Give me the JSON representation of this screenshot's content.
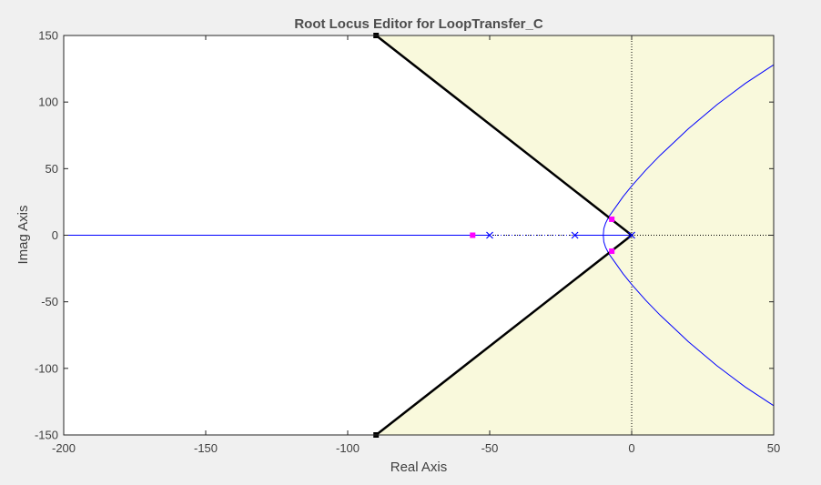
{
  "window": {
    "title": "Root Locus Editor for LoopTransfer_C"
  },
  "chart_data": {
    "type": "line",
    "title": "Root Locus Editor for LoopTransfer_C",
    "xlabel": "Real Axis",
    "ylabel": "Imag Axis",
    "xlim": [
      -200,
      50
    ],
    "ylim": [
      -150,
      150
    ],
    "xticks": [
      -200,
      -150,
      -100,
      -50,
      0,
      50
    ],
    "yticks": [
      -150,
      -100,
      -50,
      0,
      50,
      100,
      150
    ],
    "xtick_labels": [
      "-200",
      "-150",
      "-100",
      "-50",
      "0",
      "50"
    ],
    "ytick_labels": [
      "-150",
      "-100",
      "-50",
      "0",
      "50",
      "100",
      "150"
    ],
    "grid": false,
    "colors": {
      "locus": "#0000ff",
      "constraint_region": "#f9f9dc",
      "constraint_edge": "#000000",
      "closed_loop_pole": "#ff00ff",
      "open_loop_pole": "#0000ff",
      "axis_zero_line": "#000000",
      "plot_background": "#ffffff",
      "figure_background": "#f0f0f0"
    },
    "open_loop_poles": [
      {
        "re": 0,
        "im": 0
      },
      {
        "re": -20,
        "im": 0
      },
      {
        "re": -50,
        "im": 0
      }
    ],
    "closed_loop_poles": [
      {
        "re": -7,
        "im": 12
      },
      {
        "re": -7,
        "im": -12
      },
      {
        "re": -56,
        "im": 0
      }
    ],
    "locus_branches": [
      {
        "name": "upper",
        "re": [
          -10,
          -9.8,
          -9.2,
          -8,
          -6,
          -3,
          0,
          5,
          10,
          15,
          20,
          25,
          30,
          35,
          40,
          45,
          50
        ],
        "im": [
          0,
          5,
          9,
          14,
          20,
          29,
          37,
          49,
          60,
          70,
          80,
          89,
          98,
          106,
          114,
          121,
          128
        ]
      },
      {
        "name": "lower",
        "re": [
          -10,
          -9.8,
          -9.2,
          -8,
          -6,
          -3,
          0,
          5,
          10,
          15,
          20,
          25,
          30,
          35,
          40,
          45,
          50
        ],
        "im": [
          0,
          -5,
          -9,
          -14,
          -20,
          -29,
          -37,
          -49,
          -60,
          -70,
          -80,
          -89,
          -98,
          -106,
          -114,
          -121,
          -128
        ]
      },
      {
        "name": "real-axis-left",
        "re": [
          -50,
          -200
        ],
        "im": [
          0,
          0
        ]
      },
      {
        "name": "real-axis-between",
        "re": [
          -20,
          0
        ],
        "im": [
          0,
          0
        ]
      }
    ],
    "dotted_segments": [
      {
        "name": "real-axis-dotted",
        "re": [
          -50,
          -20
        ],
        "im": [
          0,
          0
        ]
      }
    ],
    "constraint_boundary": {
      "re": [
        -90,
        0,
        -90
      ],
      "im": [
        150,
        0,
        -150
      ]
    }
  }
}
